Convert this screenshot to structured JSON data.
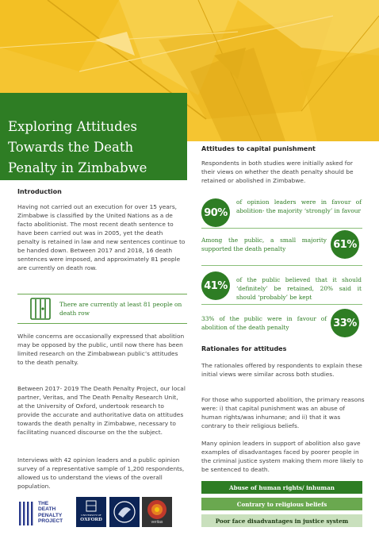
{
  "title": "Exploring Attitudes Towards the Death Penalty in Zimbabwe",
  "intro": {
    "heading": "Introduction",
    "p1": "Having not carried out an execution for over 15 years, Zimbabwe is classified by the United Nations as a de facto abolitionist. The most recent death sentence to have been carried out was in 2005, yet the death penalty is retained in law and new sentences continue to be handed down. Between 2017 and 2018, 16 death sentences were imposed, and approximately 81 people are currently on death row.",
    "callout": "There are currently at least 81 people on death row",
    "p2": "While concerns are occasionally expressed that abolition may be opposed by the public, until now there has been limited research on the Zimbabwean public’s attitudes to the death penalty.",
    "p3": "Between 2017- 2019 The Death Penalty Project, our local partner, Veritas, and The Death Penalty Research Unit, at the University of Oxford, undertook research to provide the accurate and authoritative data on attitudes towards the death penalty in Zimbabwe, necessary to facilitating nuanced discourse on the the subject.",
    "p4": "Interviews with 42 opinion leaders and a public opinion survey of a representative sample of 1,200 respondents, allowed us to understand the views of the overall population."
  },
  "attitudes": {
    "heading": "Attitudes to capital punishment",
    "intro": "Respondents in both studies were initially asked for their views on whether the death penalty should be retained or abolished in Zimbabwe.",
    "stats": [
      {
        "value": "90%",
        "text": "of opinion leaders were in favour of abolition- the majority ‘strongly’ in favour"
      },
      {
        "value": "61%",
        "text": "Among the public, a small majority supported the death penalty"
      },
      {
        "value": "41%",
        "text": "of the public believed that it should ‘definitely’ be retained, 20% said it should ‘probably’ be kept"
      },
      {
        "value": "33%",
        "text": "33% of the public were in favour of abolition of the death penalty"
      }
    ]
  },
  "rationales": {
    "heading": "Rationales for attitudes",
    "p1": "The rationales offered by respondents to explain these initial views were similar across both studies.",
    "p2": "For those who supported abolition, the primary reasons were: i) that capital punishment was an abuse of human rights/was inhumane; and ii) that it was contrary to their religious beliefs.",
    "p3": "Many opinion leaders in support of abolition also gave examples of disadvantages faced by poorer people in the criminal justice system making them more likely to be sentenced to death.",
    "bars": [
      "Abuse of human rights/ inhuman",
      "Contrary to religious beliefs",
      "Poor face disadvantages in justice system"
    ]
  },
  "logos": {
    "dpp": [
      "THE",
      "DEATH",
      "PENALTY",
      "PROJECT"
    ],
    "oxford": [
      "UNIVERSITY OF",
      "OXFORD"
    ],
    "veritas": "veritas"
  },
  "colors": {
    "green": "#2e7d24",
    "yellow": "#f5c531",
    "light_green": "#c9e0bd"
  }
}
